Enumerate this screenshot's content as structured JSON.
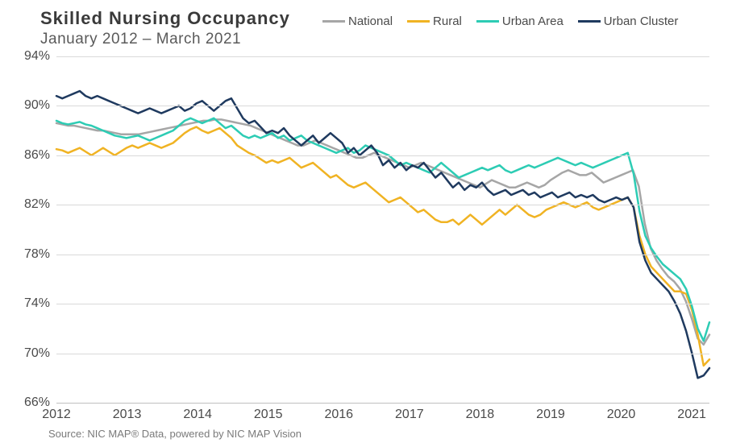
{
  "chart": {
    "type": "line",
    "title": "Skilled  Nursing  Occupancy",
    "subtitle": "January  2012 – March 2021",
    "title_fontsize": 22,
    "subtitle_fontsize": 19,
    "title_color": "#3a3a3a",
    "subtitle_color": "#5a5a5a",
    "background_color": "#ffffff",
    "grid_color": "#d9d9d9",
    "axis_label_color": "#4a4a4a",
    "axis_label_fontsize": 16,
    "line_width": 2.5,
    "ylim": [
      66,
      94
    ],
    "ytick_step": 4,
    "yticks": [
      "66%",
      "70%",
      "74%",
      "78%",
      "82%",
      "86%",
      "90%",
      "94%"
    ],
    "xlim": [
      2012,
      2021.25
    ],
    "xticks": [
      2012,
      2013,
      2014,
      2015,
      2016,
      2017,
      2018,
      2019,
      2020,
      2021
    ],
    "xtick_labels": [
      "2012",
      "2013",
      "2014",
      "2015",
      "2016",
      "2017",
      "2018",
      "2019",
      "2020",
      "2021"
    ],
    "legend": {
      "position": "top-right",
      "fontsize": 15,
      "items": [
        {
          "label": "National",
          "color": "#a6a6a6"
        },
        {
          "label": "Rural",
          "color": "#f0b323"
        },
        {
          "label": "Urban Area",
          "color": "#2dccb4"
        },
        {
          "label": "Urban Cluster",
          "color": "#1f3a5f"
        }
      ]
    },
    "series": [
      {
        "name": "National",
        "color": "#a6a6a6",
        "values": [
          88.6,
          88.5,
          88.4,
          88.4,
          88.3,
          88.2,
          88.1,
          88.0,
          88.0,
          87.9,
          87.8,
          87.7,
          87.7,
          87.7,
          87.7,
          87.8,
          87.9,
          88.0,
          88.1,
          88.2,
          88.3,
          88.4,
          88.5,
          88.6,
          88.7,
          88.8,
          88.8,
          88.9,
          88.9,
          88.8,
          88.7,
          88.6,
          88.5,
          88.4,
          88.2,
          88.0,
          87.8,
          87.6,
          87.4,
          87.2,
          87.0,
          86.8,
          86.8,
          87.0,
          87.2,
          87.0,
          86.8,
          86.6,
          86.4,
          86.2,
          86.0,
          85.8,
          85.8,
          86.0,
          86.2,
          86.0,
          85.8,
          85.6,
          85.4,
          85.2,
          85.0,
          85.2,
          85.4,
          85.2,
          85.0,
          84.8,
          84.6,
          84.4,
          84.2,
          84.0,
          83.8,
          83.6,
          83.4,
          83.7,
          84.0,
          83.8,
          83.6,
          83.4,
          83.4,
          83.6,
          83.8,
          83.6,
          83.4,
          83.6,
          84.0,
          84.3,
          84.6,
          84.8,
          84.6,
          84.4,
          84.4,
          84.6,
          84.2,
          83.8,
          84.0,
          84.2,
          84.4,
          84.6,
          84.8,
          83.5,
          80.5,
          78.5,
          77.5,
          76.8,
          76.2,
          75.8,
          75.2,
          74.2,
          72.8,
          71.2,
          70.7,
          71.5
        ]
      },
      {
        "name": "Rural",
        "color": "#f0b323",
        "values": [
          86.5,
          86.4,
          86.2,
          86.4,
          86.6,
          86.3,
          86.0,
          86.3,
          86.6,
          86.3,
          86.0,
          86.3,
          86.6,
          86.8,
          86.6,
          86.8,
          87.0,
          86.8,
          86.6,
          86.8,
          87.0,
          87.4,
          87.8,
          88.1,
          88.3,
          88.0,
          87.8,
          88.0,
          88.2,
          87.8,
          87.4,
          86.8,
          86.5,
          86.2,
          86.0,
          85.7,
          85.4,
          85.6,
          85.4,
          85.6,
          85.8,
          85.4,
          85.0,
          85.2,
          85.4,
          85.0,
          84.6,
          84.2,
          84.4,
          84.0,
          83.6,
          83.4,
          83.6,
          83.8,
          83.4,
          83.0,
          82.6,
          82.2,
          82.4,
          82.6,
          82.2,
          81.8,
          81.4,
          81.6,
          81.2,
          80.8,
          80.6,
          80.6,
          80.8,
          80.4,
          80.8,
          81.2,
          80.8,
          80.4,
          80.8,
          81.2,
          81.6,
          81.2,
          81.6,
          82.0,
          81.6,
          81.2,
          81.0,
          81.2,
          81.6,
          81.8,
          82.0,
          82.2,
          82.0,
          81.8,
          82.0,
          82.2,
          81.8,
          81.6,
          81.8,
          82.0,
          82.2,
          82.4,
          82.6,
          81.8,
          79.5,
          78.0,
          77.0,
          76.5,
          76.0,
          75.5,
          75.0,
          75.0,
          74.8,
          73.5,
          71.5,
          69.0,
          69.5
        ]
      },
      {
        "name": "Urban Area",
        "color": "#2dccb4",
        "values": [
          88.8,
          88.6,
          88.5,
          88.6,
          88.7,
          88.5,
          88.4,
          88.2,
          88.0,
          87.8,
          87.6,
          87.5,
          87.4,
          87.5,
          87.6,
          87.4,
          87.2,
          87.4,
          87.6,
          87.8,
          88.0,
          88.4,
          88.8,
          89.0,
          88.8,
          88.6,
          88.8,
          89.0,
          88.6,
          88.2,
          88.4,
          88.0,
          87.6,
          87.4,
          87.6,
          87.4,
          87.6,
          87.8,
          87.4,
          87.6,
          87.2,
          87.4,
          87.6,
          87.2,
          87.0,
          86.8,
          86.6,
          86.4,
          86.2,
          86.4,
          86.6,
          86.2,
          86.4,
          86.8,
          86.6,
          86.4,
          86.2,
          86.0,
          85.6,
          85.2,
          85.4,
          85.2,
          85.0,
          84.8,
          84.6,
          85.0,
          85.4,
          85.0,
          84.6,
          84.2,
          84.4,
          84.6,
          84.8,
          85.0,
          84.8,
          85.0,
          85.2,
          84.8,
          84.6,
          84.8,
          85.0,
          85.2,
          85.0,
          85.2,
          85.4,
          85.6,
          85.8,
          85.6,
          85.4,
          85.2,
          85.4,
          85.2,
          85.0,
          85.2,
          85.4,
          85.6,
          85.8,
          86.0,
          86.2,
          84.5,
          81.5,
          79.5,
          78.5,
          77.8,
          77.2,
          76.8,
          76.4,
          76.0,
          75.2,
          73.8,
          72.0,
          71.0,
          72.5
        ]
      },
      {
        "name": "Urban Cluster",
        "color": "#1f3a5f",
        "values": [
          90.8,
          90.6,
          90.8,
          91.0,
          91.2,
          90.8,
          90.6,
          90.8,
          90.6,
          90.4,
          90.2,
          90.0,
          89.8,
          89.6,
          89.4,
          89.6,
          89.8,
          89.6,
          89.4,
          89.6,
          89.8,
          90.0,
          89.6,
          89.8,
          90.2,
          90.4,
          90.0,
          89.6,
          90.0,
          90.4,
          90.6,
          89.8,
          89.0,
          88.6,
          88.8,
          88.3,
          87.8,
          88.0,
          87.8,
          88.2,
          87.6,
          87.2,
          86.8,
          87.2,
          87.6,
          87.0,
          87.4,
          87.8,
          87.4,
          87.0,
          86.2,
          86.6,
          86.0,
          86.4,
          86.8,
          86.2,
          85.2,
          85.6,
          85.0,
          85.4,
          84.8,
          85.2,
          85.0,
          85.4,
          84.8,
          84.2,
          84.6,
          84.0,
          83.4,
          83.8,
          83.2,
          83.6,
          83.4,
          83.8,
          83.2,
          82.8,
          83.0,
          83.2,
          82.8,
          83.0,
          83.2,
          82.8,
          83.0,
          82.6,
          82.8,
          83.0,
          82.6,
          82.8,
          83.0,
          82.6,
          82.8,
          82.6,
          82.8,
          82.4,
          82.2,
          82.4,
          82.6,
          82.4,
          82.6,
          81.8,
          79.0,
          77.5,
          76.5,
          76.0,
          75.5,
          75.0,
          74.2,
          73.2,
          71.8,
          70.0,
          68.0,
          68.2,
          68.8
        ]
      }
    ],
    "source_text": "Source: NIC MAP® Data, powered  by NIC MAP Vision",
    "source_fontsize": 13,
    "source_color": "#7a7a7a"
  }
}
